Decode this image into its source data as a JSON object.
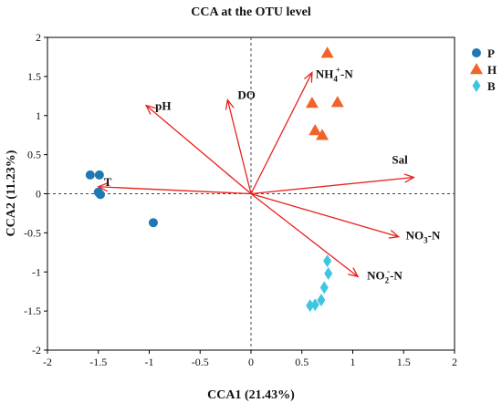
{
  "chart_data": {
    "type": "scatter",
    "title": "CCA at the OTU level",
    "xlabel": "CCA1 (21.43%)",
    "ylabel": "CCA2 (11.23%)",
    "xlim": [
      -2,
      2
    ],
    "ylim": [
      -2,
      2
    ],
    "x_ticks": [
      -2,
      -1.5,
      -1,
      -0.5,
      0,
      0.5,
      1,
      1.5,
      2
    ],
    "y_ticks": [
      -2,
      -1.5,
      -1,
      -0.5,
      0,
      0.5,
      1,
      1.5,
      2
    ],
    "x_tick_labels": [
      "-2",
      "-1.5",
      "-1",
      "-0.5",
      "0",
      "0.5",
      "1",
      "1.5",
      "2"
    ],
    "y_tick_labels": [
      "-2",
      "-1.5",
      "-1",
      "-0.5",
      "0",
      "0.5",
      "1",
      "1.5",
      "2"
    ],
    "grid": false,
    "origin_lines": "dashed",
    "legend_position": "top-right",
    "series": [
      {
        "name": "P",
        "marker": "circle",
        "color": "#1f78b4",
        "points": [
          [
            -1.58,
            0.24
          ],
          [
            -1.49,
            0.24
          ],
          [
            -1.5,
            0.02
          ],
          [
            -1.48,
            -0.01
          ],
          [
            -0.96,
            -0.37
          ]
        ]
      },
      {
        "name": "H",
        "marker": "triangle",
        "color": "#f0642a",
        "points": [
          [
            0.75,
            1.8
          ],
          [
            0.6,
            1.16
          ],
          [
            0.85,
            1.17
          ],
          [
            0.63,
            0.81
          ],
          [
            0.7,
            0.75
          ]
        ]
      },
      {
        "name": "B",
        "marker": "diamond",
        "color": "#3ec6e0",
        "points": [
          [
            0.75,
            -0.86
          ],
          [
            0.76,
            -1.02
          ],
          [
            0.72,
            -1.2
          ],
          [
            0.69,
            -1.36
          ],
          [
            0.58,
            -1.43
          ],
          [
            0.63,
            -1.42
          ]
        ]
      }
    ],
    "vectors": [
      {
        "label": "NH",
        "sub": "4",
        "sup": "+",
        "suffix": "-N",
        "x": 0.6,
        "y": 1.55
      },
      {
        "label": "pH",
        "x": -1.03,
        "y": 1.13
      },
      {
        "label": "DO",
        "x": -0.23,
        "y": 1.2
      },
      {
        "label": "T",
        "x": -1.5,
        "y": 0.09
      },
      {
        "label": "Sal",
        "x": 1.6,
        "y": 0.21
      },
      {
        "label": "NO",
        "sub": "3",
        "suffix": "-N",
        "x": 1.45,
        "y": -0.55
      },
      {
        "label": "NO",
        "sub": "2",
        "sup": "-",
        "suffix": "-N",
        "x": 1.05,
        "y": -1.06
      }
    ],
    "vector_color": "#e8211d"
  }
}
